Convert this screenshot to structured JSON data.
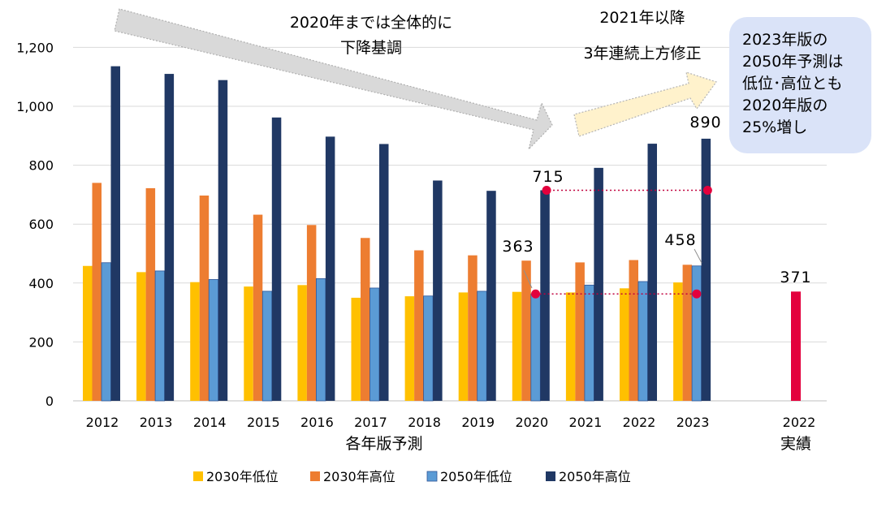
{
  "chart_data": {
    "type": "bar",
    "categories": [
      "2012",
      "2013",
      "2014",
      "2015",
      "2016",
      "2017",
      "2018",
      "2019",
      "2020",
      "2021",
      "2022",
      "2023"
    ],
    "xlabel": "各年版予測",
    "ylim": [
      0,
      1300
    ],
    "yticks": [
      "0",
      "200",
      "400",
      "600",
      "800",
      "1,000",
      "1,200"
    ],
    "grid": true,
    "legend_position": "bottom",
    "series": [
      {
        "name": "2030年低位",
        "color": "#FFC000",
        "values": [
          458,
          437,
          403,
          388,
          393,
          350,
          355,
          368,
          370,
          368,
          382,
          402
        ]
      },
      {
        "name": "2030年高位",
        "color": "#ED7D31",
        "values": [
          740,
          722,
          697,
          632,
          597,
          553,
          511,
          494,
          476,
          470,
          478,
          462
        ]
      },
      {
        "name": "2050年低位",
        "color": "#5B9BD5",
        "values": [
          469,
          441,
          412,
          372,
          415,
          383,
          356,
          372,
          363,
          393,
          405,
          458
        ]
      },
      {
        "name": "2050年高位",
        "color": "#203864",
        "values": [
          1136,
          1110,
          1089,
          962,
          897,
          872,
          748,
          713,
          715,
          791,
          873,
          890
        ]
      }
    ],
    "actual": {
      "category": "2022",
      "label": "実績",
      "value": 371,
      "color": "#E3003D"
    },
    "data_labels": {
      "l2050_2020": "363",
      "h2050_2020": "715",
      "l2050_2023": "458",
      "h2050_2023": "890",
      "actual": "371"
    },
    "annotations": {
      "down_text": [
        "2020年までは全体的に",
        "下降基調"
      ],
      "up_text": [
        "2021年以降",
        "3年連続上方修正"
      ],
      "callout_text": [
        "2023年版の",
        "2050年予測は",
        "低位･高位とも",
        "2020年版の",
        "25%増し"
      ]
    }
  }
}
